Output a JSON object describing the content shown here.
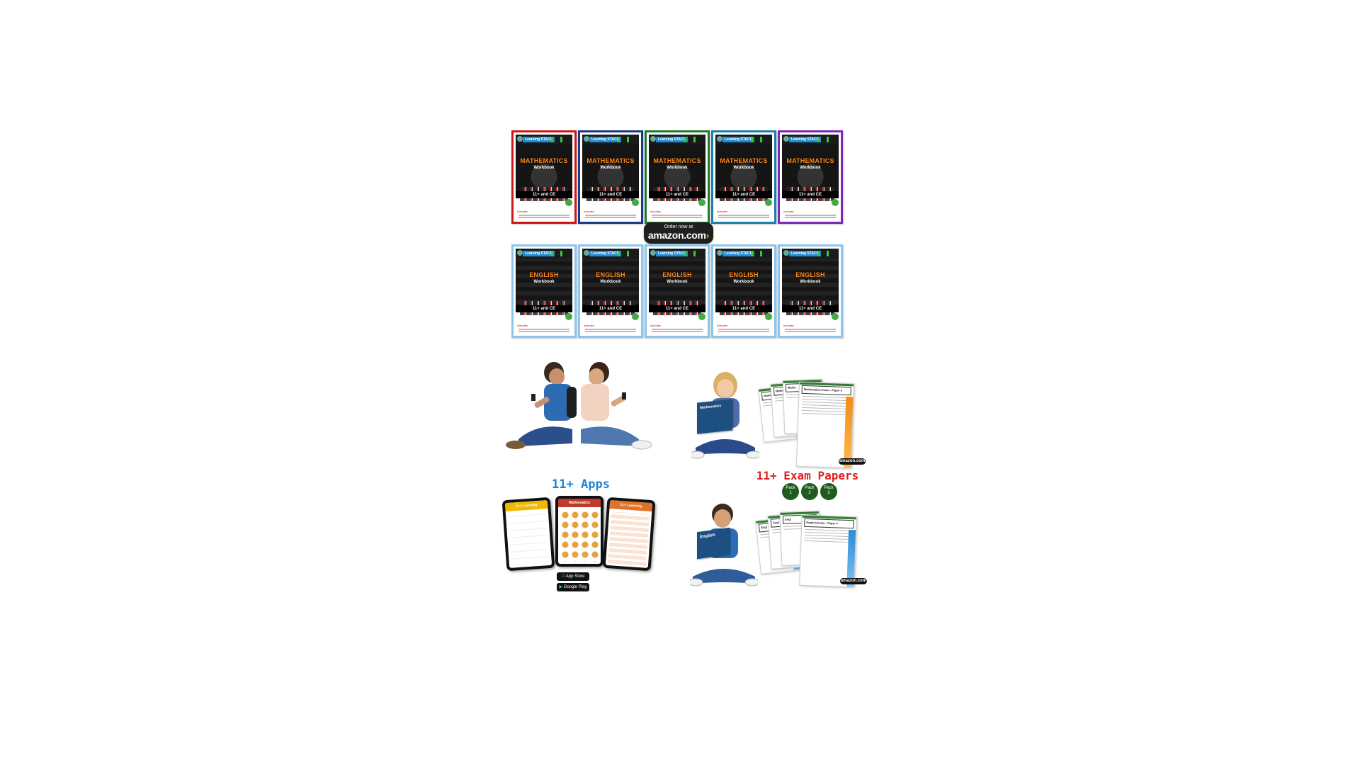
{
  "maths_books": {
    "items": [
      {
        "brand": "Learning STACK",
        "title": "MATHEMATICS",
        "subtitle": "Workbook",
        "band": "11+ and CE",
        "tag": "Includes",
        "border": "#d01818"
      },
      {
        "brand": "Learning STACK",
        "title": "MATHEMATICS",
        "subtitle": "Workbook",
        "band": "11+ and CE",
        "tag": "Includes",
        "border": "#1a3a85"
      },
      {
        "brand": "Learning STACK",
        "title": "MATHEMATICS",
        "subtitle": "Workbook",
        "band": "11+ and CE",
        "tag": "Includes",
        "border": "#1e7b2e"
      },
      {
        "brand": "Learning STACK",
        "title": "MATHEMATICS",
        "subtitle": "Workbook",
        "band": "11+ and CE",
        "tag": "Includes",
        "border": "#1a7fb0"
      },
      {
        "brand": "Learning STACK",
        "title": "MATHEMATICS",
        "subtitle": "Workbook",
        "band": "11+ and CE",
        "tag": "Includes",
        "border": "#7a2ab8"
      }
    ]
  },
  "amazon_button": {
    "small": "Order now at",
    "big": "amazon.com"
  },
  "english_books": {
    "items": [
      {
        "brand": "Learning STACK",
        "title": "ENGLISH",
        "subtitle": "Workbook",
        "band": "11+ and CE",
        "tag": "Includes"
      },
      {
        "brand": "Learning STACK",
        "title": "ENGLISH",
        "subtitle": "Workbook",
        "band": "11+ and CE",
        "tag": "Includes"
      },
      {
        "brand": "Learning STACK",
        "title": "ENGLISH",
        "subtitle": "Workbook",
        "band": "11+ and CE",
        "tag": "Includes"
      },
      {
        "brand": "Learning STACK",
        "title": "ENGLISH",
        "subtitle": "Workbook",
        "band": "11+ and CE",
        "tag": "Includes"
      },
      {
        "brand": "Learning STACK",
        "title": "ENGLISH",
        "subtitle": "Workbook",
        "band": "11+ and CE",
        "tag": "Includes"
      }
    ]
  },
  "apps": {
    "title": "11+ Apps",
    "tablets": [
      {
        "label": "11+ Learning",
        "bar_color": "#f0b800"
      },
      {
        "label": "Mathematics",
        "bar_color": "#c0392b"
      },
      {
        "label": "11+ Learning",
        "bar_color": "#e0732a"
      }
    ],
    "app_store": "App Store",
    "google_play": "Google Play"
  },
  "exam_papers": {
    "title": "11+ Exam Papers",
    "packs": [
      {
        "label": "Pack",
        "num": "1"
      },
      {
        "label": "Pack",
        "num": "2"
      },
      {
        "label": "Pack",
        "num": "3"
      }
    ],
    "math_paper_title": "Mathematics Exam - Paper 4",
    "math_short": "Mathe",
    "english_paper_title": "English Exam - Paper 4",
    "english_short": "Engl",
    "amazon_mini": "amazon.com",
    "girl_book": "Mathematics",
    "boy_book": "English"
  }
}
